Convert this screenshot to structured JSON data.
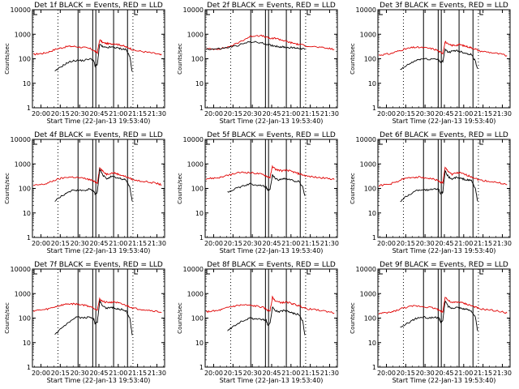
{
  "chart_data": {
    "type": "line",
    "layout": "3x3 grid of panels",
    "shared_x_label": "Start Time (22-Jan-13 19:53:40)",
    "x_tick_labels": [
      "20:00",
      "20:15",
      "20:30",
      "20:45",
      "21:00",
      "21:15",
      "21:30"
    ],
    "x_range_hours": [
      19.89,
      21.6
    ],
    "y_label": "Counts/sec",
    "y_scale": "log",
    "y_range": [
      1,
      10000
    ],
    "y_tick_labels": [
      "1",
      "10",
      "100",
      "1000",
      "10000"
    ],
    "series_colors": {
      "black": "#000000",
      "red": "#e00000"
    },
    "dotted_lines_x_hours": [
      20.22,
      21.19
    ],
    "solid_lines_x_hours": [
      20.48,
      20.67,
      20.71,
      20.94,
      21.12
    ],
    "panels": [
      {
        "title": "Det 1f BLACK = Events, RED = LLD",
        "black": {
          "x": [
            20.18,
            20.25,
            20.33,
            20.4,
            20.47,
            20.55,
            20.63,
            20.68,
            20.7,
            20.73,
            20.76,
            20.8,
            20.85,
            20.9,
            20.95,
            21.0,
            21.05,
            21.1,
            21.15,
            21.18
          ],
          "y": [
            30,
            45,
            65,
            80,
            85,
            85,
            100,
            90,
            50,
            60,
            400,
            300,
            280,
            300,
            290,
            270,
            250,
            240,
            120,
            30
          ]
        },
        "red": {
          "x": [
            19.9,
            19.97,
            20.05,
            20.12,
            20.2,
            20.27,
            20.35,
            20.42,
            20.5,
            20.58,
            20.65,
            20.7,
            20.73,
            20.76,
            20.8,
            20.85,
            20.9,
            20.95,
            21.0,
            21.05,
            21.1,
            21.15,
            21.2,
            21.3,
            21.4,
            21.5,
            21.56
          ],
          "y": [
            150,
            160,
            170,
            200,
            250,
            280,
            320,
            320,
            300,
            280,
            250,
            200,
            180,
            600,
            450,
            420,
            400,
            420,
            380,
            350,
            300,
            270,
            220,
            200,
            180,
            160,
            140
          ]
        }
      },
      {
        "title": "Det 2f BLACK = Events, RED = LLD",
        "black": {
          "x": [
            19.9,
            20.0,
            20.1,
            20.2,
            20.3,
            20.4,
            20.47,
            20.55,
            20.63,
            20.7,
            20.75,
            20.8,
            20.85,
            20.9,
            20.95,
            21.0,
            21.05,
            21.1,
            21.15,
            21.18
          ],
          "y": [
            250,
            250,
            260,
            290,
            340,
            420,
            500,
            470,
            430,
            380,
            350,
            330,
            310,
            300,
            290,
            280,
            280,
            270,
            260,
            240
          ]
        },
        "red": {
          "x": [
            19.9,
            20.0,
            20.1,
            20.2,
            20.3,
            20.4,
            20.47,
            20.55,
            20.63,
            20.7,
            20.75,
            20.8,
            20.85,
            20.9,
            20.95,
            21.0,
            21.05,
            21.1,
            21.2,
            21.3,
            21.4,
            21.5,
            21.56
          ],
          "y": [
            250,
            250,
            260,
            310,
            420,
            620,
            800,
            900,
            850,
            720,
            650,
            700,
            620,
            560,
            500,
            450,
            420,
            380,
            340,
            310,
            280,
            260,
            240
          ]
        }
      },
      {
        "title": "Det 3f BLACK = Events, RED = LLD",
        "black": {
          "x": [
            20.18,
            20.25,
            20.33,
            20.4,
            20.47,
            20.55,
            20.63,
            20.68,
            20.7,
            20.73,
            20.76,
            20.8,
            20.85,
            20.9,
            20.95,
            21.0,
            21.05,
            21.1,
            21.15,
            21.18
          ],
          "y": [
            35,
            50,
            70,
            90,
            100,
            95,
            100,
            90,
            70,
            80,
            250,
            180,
            200,
            220,
            200,
            180,
            160,
            150,
            80,
            40
          ]
        },
        "red": {
          "x": [
            19.9,
            19.97,
            20.05,
            20.12,
            20.2,
            20.27,
            20.35,
            20.42,
            20.5,
            20.58,
            20.65,
            20.7,
            20.73,
            20.76,
            20.8,
            20.85,
            20.9,
            20.95,
            21.0,
            21.05,
            21.1,
            21.15,
            21.2,
            21.3,
            21.4,
            21.5,
            21.56
          ],
          "y": [
            140,
            150,
            160,
            190,
            230,
            260,
            290,
            290,
            280,
            260,
            230,
            180,
            170,
            500,
            380,
            350,
            360,
            380,
            340,
            310,
            280,
            250,
            210,
            190,
            170,
            150,
            130
          ]
        }
      },
      {
        "title": "Det 4f BLACK = Events, RED = LLD",
        "black": {
          "x": [
            20.18,
            20.25,
            20.33,
            20.4,
            20.47,
            20.55,
            20.63,
            20.68,
            20.7,
            20.73,
            20.76,
            20.8,
            20.85,
            20.9,
            20.95,
            21.0,
            21.05,
            21.1,
            21.15,
            21.18
          ],
          "y": [
            30,
            45,
            65,
            80,
            85,
            80,
            95,
            80,
            60,
            70,
            600,
            350,
            250,
            300,
            290,
            260,
            240,
            230,
            110,
            30
          ]
        },
        "red": {
          "x": [
            19.9,
            19.97,
            20.05,
            20.12,
            20.2,
            20.27,
            20.35,
            20.42,
            20.5,
            20.58,
            20.65,
            20.7,
            20.73,
            20.76,
            20.8,
            20.85,
            20.9,
            20.95,
            21.0,
            21.05,
            21.1,
            21.15,
            21.2,
            21.3,
            21.4,
            21.5,
            21.56
          ],
          "y": [
            130,
            140,
            150,
            180,
            230,
            260,
            290,
            290,
            270,
            250,
            220,
            180,
            170,
            700,
            500,
            380,
            420,
            430,
            380,
            340,
            300,
            260,
            220,
            200,
            180,
            160,
            140
          ]
        }
      },
      {
        "title": "Det 5f BLACK = Events, RED = LLD",
        "black": {
          "x": [
            20.18,
            20.25,
            20.33,
            20.4,
            20.47,
            20.55,
            20.63,
            20.68,
            20.7,
            20.73,
            20.76,
            20.8,
            20.85,
            20.9,
            20.95,
            21.0,
            21.05,
            21.1,
            21.15,
            21.18
          ],
          "y": [
            70,
            90,
            110,
            130,
            150,
            140,
            130,
            110,
            80,
            90,
            350,
            250,
            220,
            260,
            240,
            220,
            200,
            190,
            120,
            50
          ]
        },
        "red": {
          "x": [
            19.9,
            19.97,
            20.05,
            20.12,
            20.2,
            20.27,
            20.35,
            20.42,
            20.5,
            20.58,
            20.65,
            20.7,
            20.73,
            20.76,
            20.8,
            20.85,
            20.9,
            20.95,
            21.0,
            21.05,
            21.1,
            21.15,
            21.2,
            21.3,
            21.4,
            21.5,
            21.56
          ],
          "y": [
            250,
            260,
            270,
            300,
            350,
            400,
            450,
            450,
            430,
            400,
            360,
            300,
            280,
            800,
            600,
            550,
            520,
            560,
            500,
            450,
            400,
            360,
            320,
            290,
            270,
            250,
            230
          ]
        }
      },
      {
        "title": "Det 6f BLACK = Events, RED = LLD",
        "black": {
          "x": [
            20.18,
            20.25,
            20.33,
            20.4,
            20.47,
            20.55,
            20.63,
            20.68,
            20.7,
            20.73,
            20.76,
            20.8,
            20.85,
            20.9,
            20.95,
            21.0,
            21.05,
            21.1,
            21.15,
            21.18
          ],
          "y": [
            30,
            45,
            65,
            85,
            90,
            85,
            100,
            90,
            60,
            70,
            500,
            300,
            240,
            280,
            260,
            240,
            220,
            210,
            100,
            30
          ]
        },
        "red": {
          "x": [
            19.9,
            19.97,
            20.05,
            20.12,
            20.2,
            20.27,
            20.35,
            20.42,
            20.5,
            20.58,
            20.65,
            20.7,
            20.73,
            20.76,
            20.8,
            20.85,
            20.9,
            20.95,
            21.0,
            21.05,
            21.1,
            21.15,
            21.2,
            21.3,
            21.4,
            21.5,
            21.56
          ],
          "y": [
            130,
            140,
            150,
            180,
            230,
            260,
            290,
            290,
            270,
            250,
            220,
            180,
            170,
            700,
            500,
            380,
            420,
            430,
            380,
            340,
            300,
            260,
            220,
            200,
            180,
            160,
            140
          ]
        }
      },
      {
        "title": "Det 7f BLACK = Events, RED = LLD",
        "black": {
          "x": [
            20.18,
            20.25,
            20.33,
            20.4,
            20.47,
            20.55,
            20.63,
            20.68,
            20.7,
            20.73,
            20.76,
            20.8,
            20.85,
            20.9,
            20.95,
            21.0,
            21.05,
            21.1,
            21.15,
            21.18
          ],
          "y": [
            20,
            35,
            55,
            80,
            110,
            100,
            110,
            100,
            60,
            70,
            500,
            300,
            250,
            280,
            260,
            240,
            220,
            200,
            100,
            20
          ]
        },
        "red": {
          "x": [
            19.9,
            19.97,
            20.05,
            20.12,
            20.2,
            20.27,
            20.35,
            20.42,
            20.5,
            20.58,
            20.65,
            20.7,
            20.73,
            20.76,
            20.8,
            20.85,
            20.9,
            20.95,
            21.0,
            21.05,
            21.1,
            21.15,
            21.2,
            21.3,
            21.4,
            21.5,
            21.56
          ],
          "y": [
            200,
            210,
            220,
            250,
            300,
            340,
            380,
            380,
            360,
            330,
            290,
            240,
            220,
            600,
            480,
            440,
            440,
            460,
            410,
            370,
            330,
            290,
            250,
            230,
            210,
            190,
            170
          ]
        }
      },
      {
        "title": "Det 8f BLACK = Events, RED = LLD",
        "black": {
          "x": [
            20.18,
            20.25,
            20.33,
            20.4,
            20.47,
            20.55,
            20.63,
            20.68,
            20.7,
            20.73,
            20.76,
            20.8,
            20.85,
            20.9,
            20.95,
            21.0,
            21.05,
            21.1,
            21.15,
            21.18
          ],
          "y": [
            30,
            45,
            65,
            85,
            100,
            90,
            90,
            80,
            50,
            60,
            300,
            200,
            180,
            200,
            190,
            170,
            150,
            140,
            80,
            20
          ]
        },
        "red": {
          "x": [
            19.9,
            19.97,
            20.05,
            20.12,
            20.2,
            20.27,
            20.35,
            20.42,
            20.5,
            20.58,
            20.65,
            20.7,
            20.73,
            20.76,
            20.8,
            20.85,
            20.9,
            20.95,
            21.0,
            21.05,
            21.1,
            21.15,
            21.2,
            21.3,
            21.4,
            21.5,
            21.56
          ],
          "y": [
            180,
            190,
            200,
            230,
            280,
            310,
            340,
            340,
            320,
            300,
            260,
            210,
            200,
            700,
            500,
            440,
            430,
            450,
            400,
            360,
            320,
            280,
            240,
            220,
            200,
            180,
            160
          ]
        }
      },
      {
        "title": "Det 9f BLACK = Events, RED = LLD",
        "black": {
          "x": [
            20.18,
            20.25,
            20.33,
            20.4,
            20.47,
            20.55,
            20.63,
            20.68,
            20.7,
            20.73,
            20.76,
            20.8,
            20.85,
            20.9,
            20.95,
            21.0,
            21.05,
            21.1,
            21.15,
            21.18
          ],
          "y": [
            40,
            55,
            80,
            100,
            110,
            100,
            110,
            100,
            70,
            80,
            500,
            300,
            250,
            280,
            260,
            240,
            220,
            200,
            110,
            30
          ]
        },
        "red": {
          "x": [
            19.9,
            19.97,
            20.05,
            20.12,
            20.2,
            20.27,
            20.35,
            20.42,
            20.5,
            20.58,
            20.65,
            20.7,
            20.73,
            20.76,
            20.8,
            20.85,
            20.9,
            20.95,
            21.0,
            21.05,
            21.1,
            21.15,
            21.2,
            21.3,
            21.4,
            21.5,
            21.56
          ],
          "y": [
            150,
            160,
            170,
            200,
            250,
            280,
            310,
            310,
            290,
            270,
            240,
            190,
            180,
            750,
            520,
            420,
            440,
            450,
            400,
            360,
            320,
            280,
            240,
            220,
            200,
            180,
            160
          ]
        }
      }
    ]
  }
}
